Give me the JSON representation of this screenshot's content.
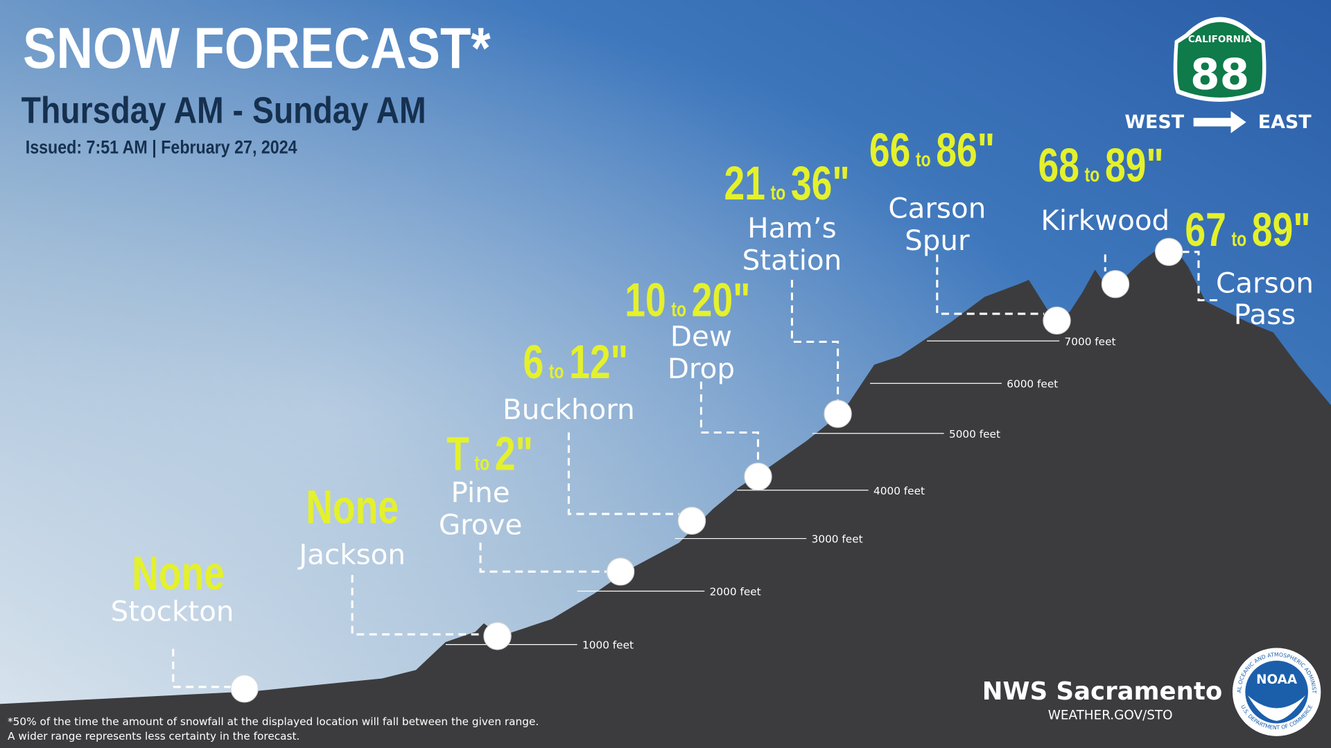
{
  "header": {
    "title": "SNOW FORECAST*",
    "subtitle": "Thursday AM - Sunday AM",
    "issued": "Issued: 7:51 AM | February 27, 2024"
  },
  "route": {
    "state": "CALIFORNIA",
    "number": "88",
    "west": "WEST",
    "east": "EAST"
  },
  "range_word": "to",
  "locations": [
    {
      "name_lines": [
        "Stockton"
      ],
      "forecast": {
        "text": "None"
      }
    },
    {
      "name_lines": [
        "Jackson"
      ],
      "forecast": {
        "text": "None"
      }
    },
    {
      "name_lines": [
        "Pine",
        "Grove"
      ],
      "forecast": {
        "low": "T",
        "high": "2\""
      }
    },
    {
      "name_lines": [
        "Buckhorn"
      ],
      "forecast": {
        "low": "6",
        "high": "12\""
      }
    },
    {
      "name_lines": [
        "Dew",
        "Drop"
      ],
      "forecast": {
        "low": "10",
        "high": "20\""
      }
    },
    {
      "name_lines": [
        "Ham’s",
        "Station"
      ],
      "forecast": {
        "low": "21",
        "high": "36\""
      }
    },
    {
      "name_lines": [
        "Carson",
        "Spur"
      ],
      "forecast": {
        "low": "66",
        "high": "86\""
      }
    },
    {
      "name_lines": [
        "Kirkwood"
      ],
      "forecast": {
        "low": "68",
        "high": "89\""
      }
    },
    {
      "name_lines": [
        "Carson",
        "Pass"
      ],
      "forecast": {
        "low": "67",
        "high": "89\""
      }
    }
  ],
  "elevations": [
    "1000 feet",
    "2000 feet",
    "3000 feet",
    "4000 feet",
    "5000 feet",
    "6000 feet",
    "7000 feet"
  ],
  "footnote": [
    "*50% of the time the amount of snowfall at the displayed location will fall between the given range.",
    "A wider range represents less certainty in the forecast."
  ],
  "office": {
    "name": "NWS Sacramento",
    "url": "WEATHER.GOV/STO"
  },
  "logo": {
    "text": "NOAA",
    "ring_top": "NATIONAL OCEANIC AND ATMOSPHERIC ADMINISTRATION",
    "ring_bottom": "U.S. DEPARTMENT OF COMMERCE"
  }
}
